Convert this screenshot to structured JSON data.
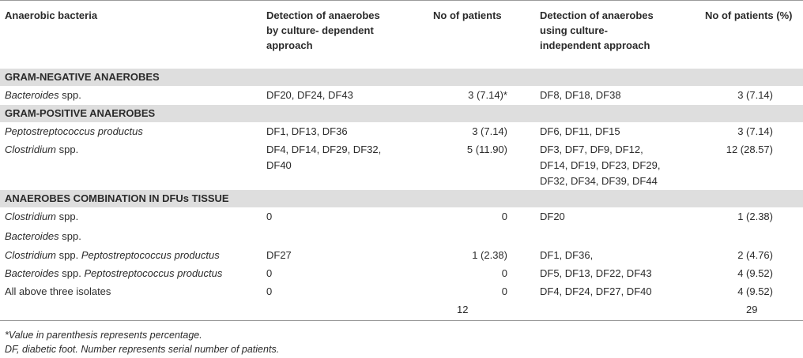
{
  "headers": {
    "col0": "Anaerobic bacteria",
    "col1": [
      "Detection of anaerobes",
      "by culture- dependent",
      "approach"
    ],
    "col2": "No of patients",
    "col3": [
      "Detection of anaerobes",
      "using culture-",
      "independent approach"
    ],
    "col4": "No of patients (%)"
  },
  "sections": {
    "gram_negative": "GRAM-NEGATIVE ANAEROBES",
    "gram_positive": "GRAM-POSITIVE ANAEROBES",
    "combination": "ANAEROBES COMBINATION IN DFUs TISSUE"
  },
  "rows": {
    "bacteroides": {
      "name_it": "Bacteroides",
      "name_rest": " spp.",
      "culture_dep": "DF20, DF24, DF43",
      "patients_dep": "3 (7.14)*",
      "culture_indep": "DF8, DF18, DF38",
      "patients_indep": "3 (7.14)"
    },
    "pepto": {
      "name_it": "Peptostreptococcus productus",
      "culture_dep": "DF1, DF13, DF36",
      "patients_dep": "3 (7.14)",
      "culture_indep": "DF6, DF11, DF15",
      "patients_indep": "3 (7.14)"
    },
    "clostridium": {
      "name_it": "Clostridium",
      "name_rest": " spp.",
      "culture_dep": [
        "DF4, DF14, DF29, DF32,",
        "DF40"
      ],
      "patients_dep": "5 (11.90)",
      "culture_indep": [
        "DF3, DF7, DF9, DF12,",
        "DF14, DF19, DF23, DF29,",
        "DF32, DF34, DF39, DF44"
      ],
      "patients_indep": "12 (28.57)"
    },
    "clos_bact": {
      "name1_it": "Clostridium",
      "name1_rest": " spp.",
      "name2_it": "Bacteroides",
      "name2_rest": " spp.",
      "culture_dep": "0",
      "patients_dep": "0",
      "culture_indep": "DF20",
      "patients_indep": "1 (2.38)"
    },
    "clos_pepto": {
      "name_it1": "Clostridium",
      "name_mid": " spp. ",
      "name_it2": "Peptostreptococcus productus",
      "culture_dep": "DF27",
      "patients_dep": "1 (2.38)",
      "culture_indep": "DF1, DF36,",
      "patients_indep": "2 (4.76)"
    },
    "bact_pepto": {
      "name_it1": "Bacteroides",
      "name_mid": " spp. ",
      "name_it2": "Peptostreptococcus productus",
      "culture_dep": "0",
      "patients_dep": "0",
      "culture_indep": "DF5, DF13, DF22, DF43",
      "patients_indep": "4 (9.52)"
    },
    "all_three": {
      "name": "All above three isolates",
      "culture_dep": "0",
      "patients_dep": "0",
      "culture_indep": "DF4, DF24, DF27, DF40",
      "patients_indep": "4 (9.52)"
    },
    "totals": {
      "patients_dep": "12",
      "patients_indep": "29"
    }
  },
  "footnotes": {
    "note1": "*Value in parenthesis represents percentage.",
    "note2": "DF, diabetic foot. Number represents serial number of patients."
  }
}
